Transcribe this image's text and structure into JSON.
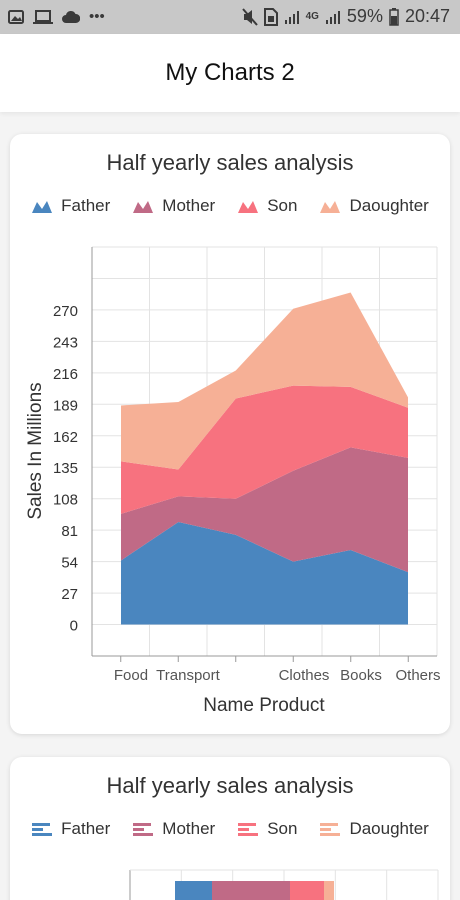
{
  "status_bar": {
    "left_icons": [
      "image-icon",
      "laptop-icon",
      "cloud-icon",
      "more-dots-icon"
    ],
    "right_icons": [
      "mute-icon",
      "sim-card-icon",
      "signal-icon",
      "4g-signal-icon",
      "battery-icon"
    ],
    "battery": "59%",
    "time": "20:47",
    "network": "4G"
  },
  "app_bar": {
    "title": "My Charts 2"
  },
  "cards": [
    {
      "chart_data": {
        "type": "area",
        "stacked": true,
        "title": "Half yearly sales analysis",
        "xlabel": "Name Product",
        "ylabel": "Sales In Millions",
        "categories": [
          "Food",
          "Transport",
          "",
          "Clothes",
          "Books",
          "Others"
        ],
        "ylim": [
          -27,
          324
        ],
        "yticks": [
          0,
          27,
          54,
          81,
          108,
          135,
          162,
          189,
          216,
          243,
          270
        ],
        "grid": true,
        "legend_position": "top",
        "series": [
          {
            "name": "Father",
            "color": "#4a86bf",
            "values": [
              55,
              88,
              77,
              54,
              64,
              45
            ]
          },
          {
            "name": "Mother",
            "color": "#c06a86",
            "values": [
              40,
              22,
              31,
              78,
              88,
              98
            ]
          },
          {
            "name": "Son",
            "color": "#f7727f",
            "values": [
              45,
              23,
              86,
              73,
              52,
              43
            ]
          },
          {
            "name": "Daoughter",
            "color": "#f6b096",
            "values": [
              48,
              58,
              24,
              66,
              81,
              9
            ]
          }
        ]
      }
    },
    {
      "chart_data": {
        "type": "bar",
        "orientation": "horizontal",
        "stacked": true,
        "title": "Half yearly sales analysis",
        "legend_position": "top",
        "series": [
          {
            "name": "Father",
            "color": "#4a86bf"
          },
          {
            "name": "Mother",
            "color": "#c06a86"
          },
          {
            "name": "Son",
            "color": "#f7727f"
          },
          {
            "name": "Daoughter",
            "color": "#f6b096"
          }
        ]
      }
    }
  ]
}
